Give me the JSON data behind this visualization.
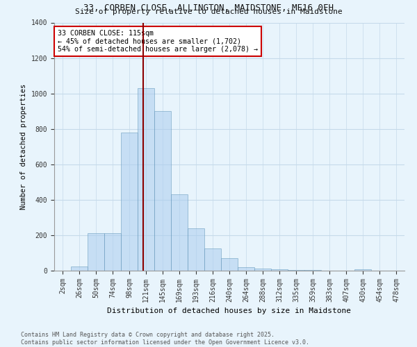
{
  "title_line1": "33, CORBEN CLOSE, ALLINGTON, MAIDSTONE, ME16 0FH",
  "title_line2": "Size of property relative to detached houses in Maidstone",
  "xlabel": "Distribution of detached houses by size in Maidstone",
  "ylabel": "Number of detached properties",
  "categories": [
    "2sqm",
    "26sqm",
    "50sqm",
    "74sqm",
    "98sqm",
    "121sqm",
    "145sqm",
    "169sqm",
    "193sqm",
    "216sqm",
    "240sqm",
    "264sqm",
    "288sqm",
    "312sqm",
    "335sqm",
    "359sqm",
    "383sqm",
    "407sqm",
    "430sqm",
    "454sqm",
    "478sqm"
  ],
  "values": [
    0,
    25,
    210,
    210,
    780,
    1030,
    900,
    430,
    240,
    125,
    70,
    20,
    12,
    8,
    5,
    3,
    0,
    0,
    8,
    0,
    0
  ],
  "bar_color": "#aaccee",
  "bar_edge_color": "#6699bb",
  "bar_alpha": 0.55,
  "vline_color": "#8b0000",
  "annotation_text": "33 CORBEN CLOSE: 115sqm\n← 45% of detached houses are smaller (1,702)\n54% of semi-detached houses are larger (2,078) →",
  "annotation_box_color": "white",
  "annotation_box_edge_color": "#cc0000",
  "ylim": [
    0,
    1400
  ],
  "yticks": [
    0,
    200,
    400,
    600,
    800,
    1000,
    1200,
    1400
  ],
  "footnote": "Contains HM Land Registry data © Crown copyright and database right 2025.\nContains public sector information licensed under the Open Government Licence v3.0.",
  "bg_color": "#e8f4fc",
  "grid_color": "#c5daea"
}
